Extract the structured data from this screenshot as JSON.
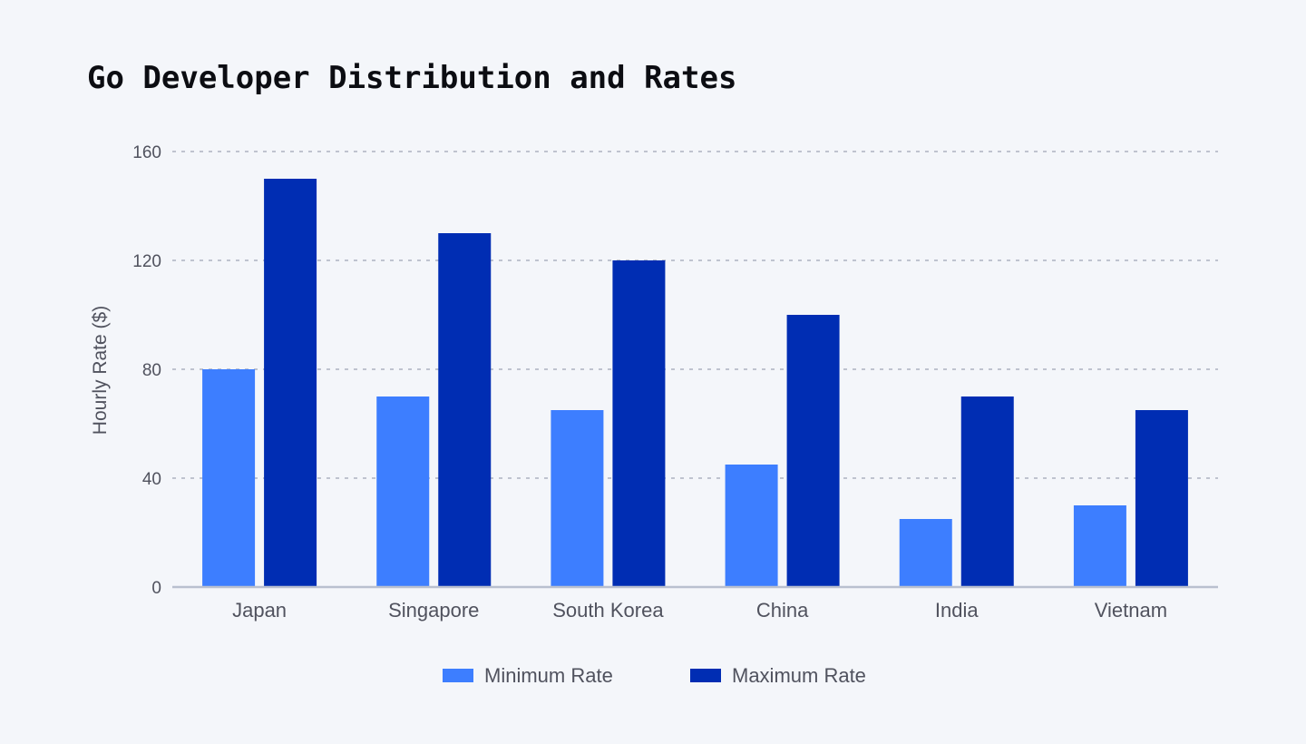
{
  "chart_data": {
    "type": "bar",
    "title": "Go Developer Distribution and Rates",
    "xlabel": "",
    "ylabel": "Hourly Rate ($)",
    "ylim": [
      0,
      160
    ],
    "yticks": [
      0,
      40,
      80,
      120,
      160
    ],
    "grid": true,
    "legend_position": "bottom-center",
    "categories": [
      "Japan",
      "Singapore",
      "South Korea",
      "China",
      "India",
      "Vietnam"
    ],
    "series": [
      {
        "name": "Minimum Rate",
        "color": "#3d7eff",
        "values": [
          80,
          70,
          65,
          45,
          25,
          30
        ]
      },
      {
        "name": "Maximum Rate",
        "color": "#002db3",
        "values": [
          150,
          130,
          120,
          100,
          70,
          65
        ]
      }
    ]
  }
}
